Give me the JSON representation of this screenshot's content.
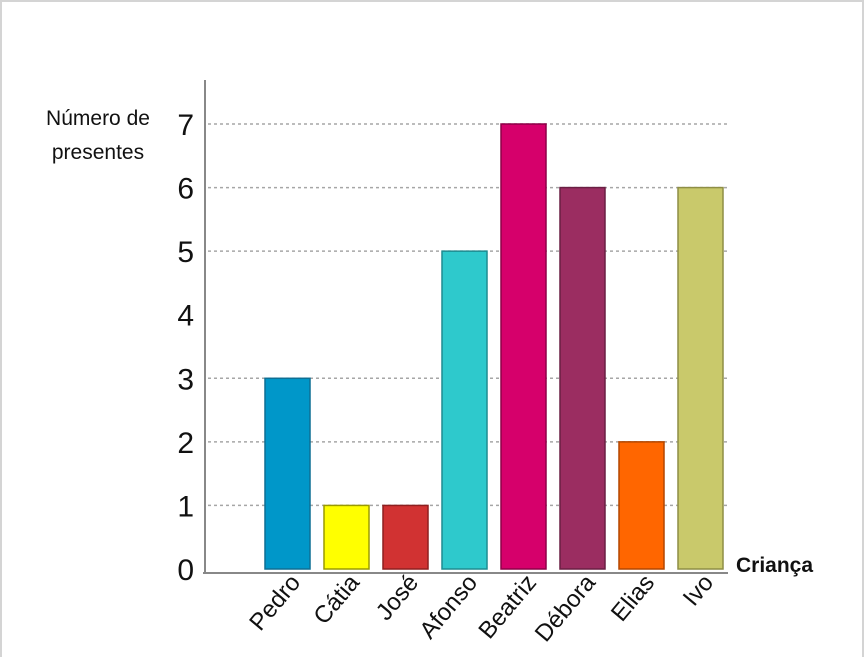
{
  "chart_data": {
    "type": "bar",
    "categories": [
      "Pedro",
      "Cátia",
      "José",
      "Afonso",
      "Beatriz",
      "Débora",
      "Elias",
      "Ivo"
    ],
    "values": [
      3,
      1,
      1,
      5,
      7,
      6,
      2,
      6
    ],
    "ylabel": [
      "Número de",
      "presentes"
    ],
    "xlabel": "Criança",
    "ylim": [
      0,
      7
    ],
    "yticks": [
      0,
      1,
      2,
      3,
      4,
      5,
      6,
      7
    ],
    "gridlines": [
      1,
      2,
      3,
      5,
      6,
      7
    ],
    "grid": "dotted",
    "colors": [
      "#0097c9",
      "#ffff00",
      "#d13232",
      "#2ec9cc",
      "#d6006b",
      "#9b2d61",
      "#ff6600",
      "#c9c96b"
    ],
    "edgecolors": [
      "#0d6f94",
      "#9a9a00",
      "#8e1f1f",
      "#1e8c91",
      "#8e0048",
      "#6a1f43",
      "#b34700",
      "#8e8e45"
    ]
  }
}
